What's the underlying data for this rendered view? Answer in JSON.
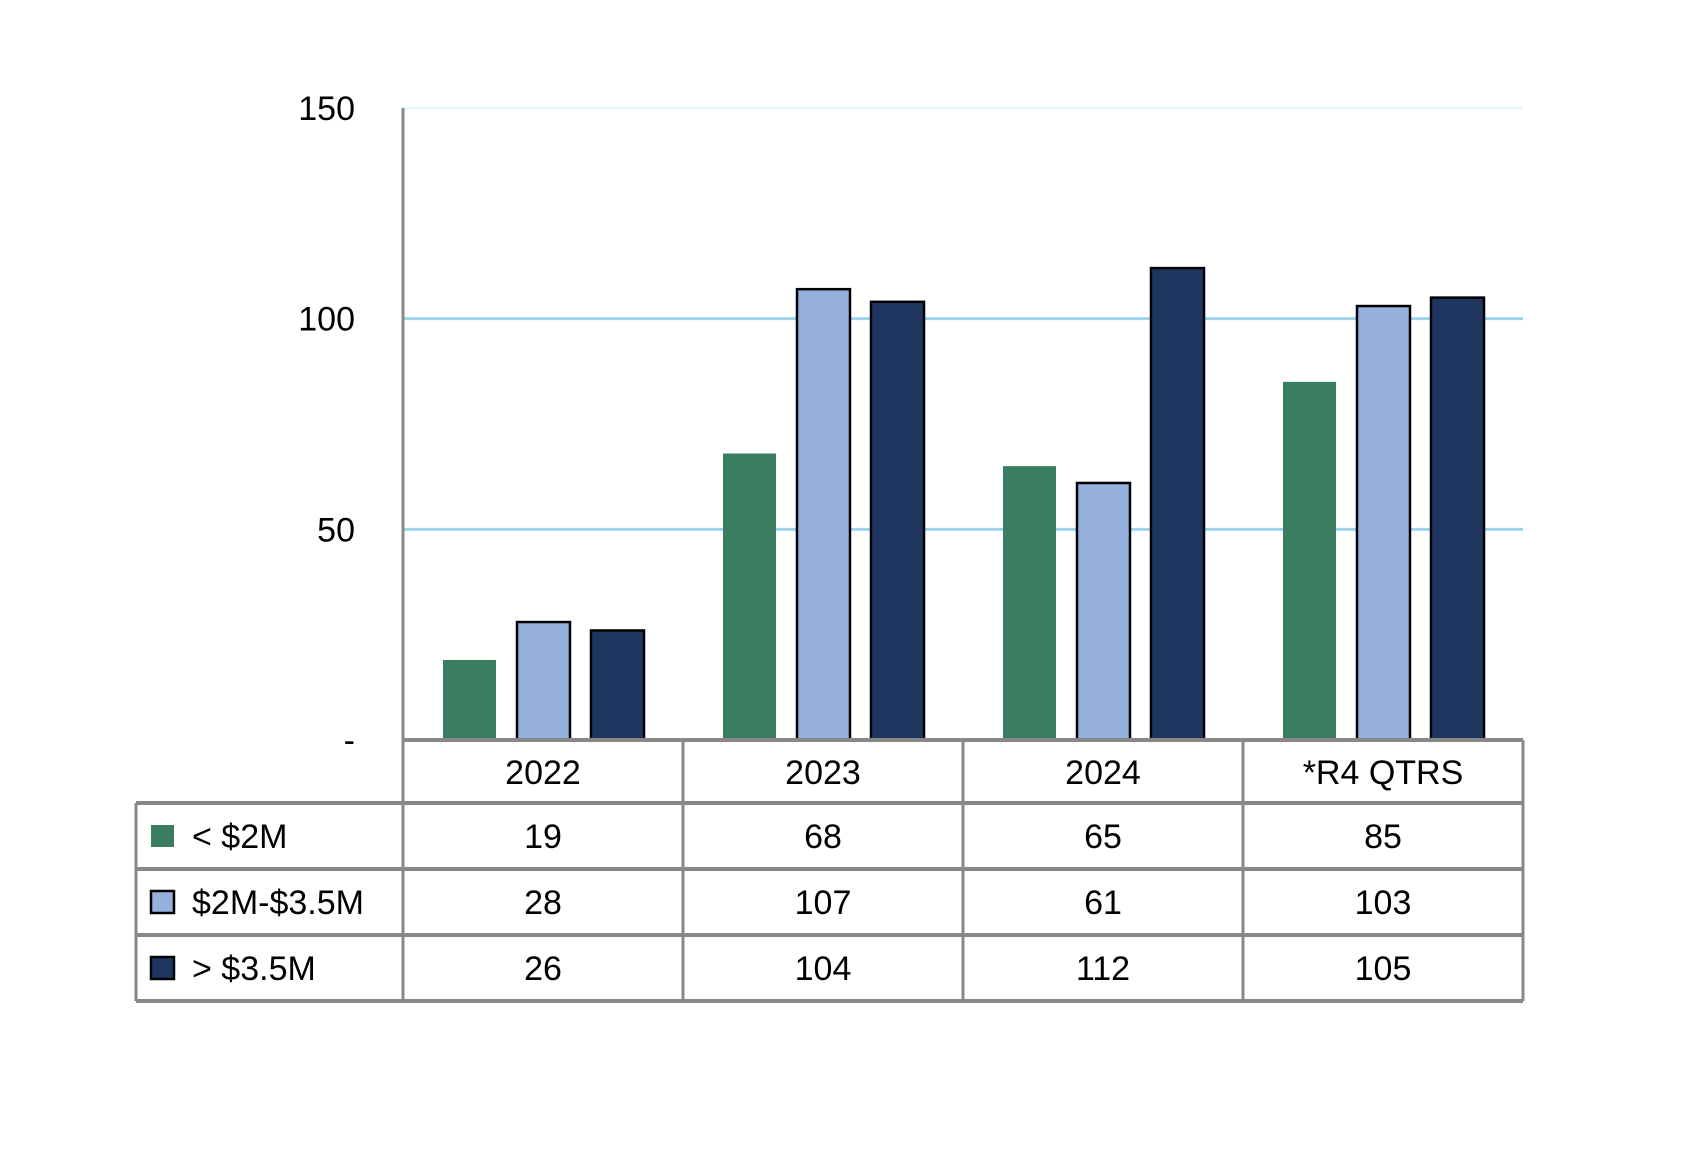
{
  "chart_data": {
    "type": "bar",
    "categories": [
      "2022",
      "2023",
      "2024",
      "*R4 QTRS"
    ],
    "series": [
      {
        "name": "< $2M",
        "values": [
          19,
          68,
          65,
          85
        ],
        "color": "#3a7d60"
      },
      {
        "name": "$2M-$3.5M",
        "values": [
          28,
          107,
          61,
          103
        ],
        "color": "#95b0dd"
      },
      {
        "name": "> $3.5M",
        "values": [
          26,
          104,
          112,
          105
        ],
        "color": "#1f3660"
      }
    ],
    "yticks": [
      {
        "value": 0,
        "label": "-"
      },
      {
        "value": 50,
        "label": "50"
      },
      {
        "value": 100,
        "label": "100"
      },
      {
        "value": 150,
        "label": "150"
      }
    ],
    "ylim": [
      0,
      150
    ],
    "grid": true,
    "gridline_color": "#9dd3ec",
    "legend": "data table below chart",
    "title": "",
    "xlabel": "",
    "ylabel": ""
  }
}
